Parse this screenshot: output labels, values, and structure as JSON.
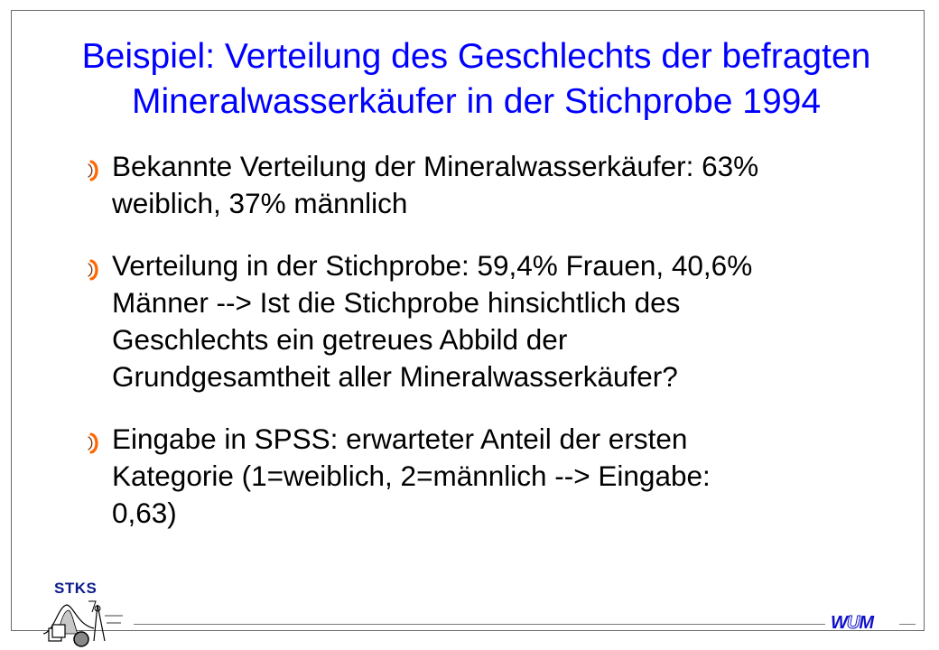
{
  "title": {
    "line1": "Beispiel: Verteilung des Geschlechts der befragten",
    "line2": "Mineralwasserkäufer in der Stichprobe 1994"
  },
  "bullets": [
    {
      "lines": [
        "Bekannte Verteilung der Mineralwasserkäufer: 63%",
        "weiblich, 37% männlich"
      ]
    },
    {
      "lines": [
        "Verteilung in der Stichprobe: 59,4% Frauen, 40,6%",
        "Männer --> Ist die Stichprobe hinsichtlich des",
        "Geschlechts ein getreues Abbild der",
        "Grundgesamtheit aller Mineralwasserkäufer?"
      ]
    },
    {
      "lines": [
        "Eingabe in SPSS: erwarteter Anteil der ersten",
        "Kategorie (1=weiblich, 2=männlich --> Eingabe:",
        "0,63)"
      ]
    }
  ],
  "footer": {
    "stks_label": "STKS",
    "wum_left": "W",
    "wum_middle": "U",
    "wum_right": "M"
  },
  "colors": {
    "title": "#0000ff",
    "bullet_icon": "#ff6600",
    "text": "#000000"
  },
  "icons": {
    "bullet": "crescent-bullet-icon",
    "stks_logo": "statistics-logo-icon",
    "wum_logo": "wum-logo-icon"
  }
}
